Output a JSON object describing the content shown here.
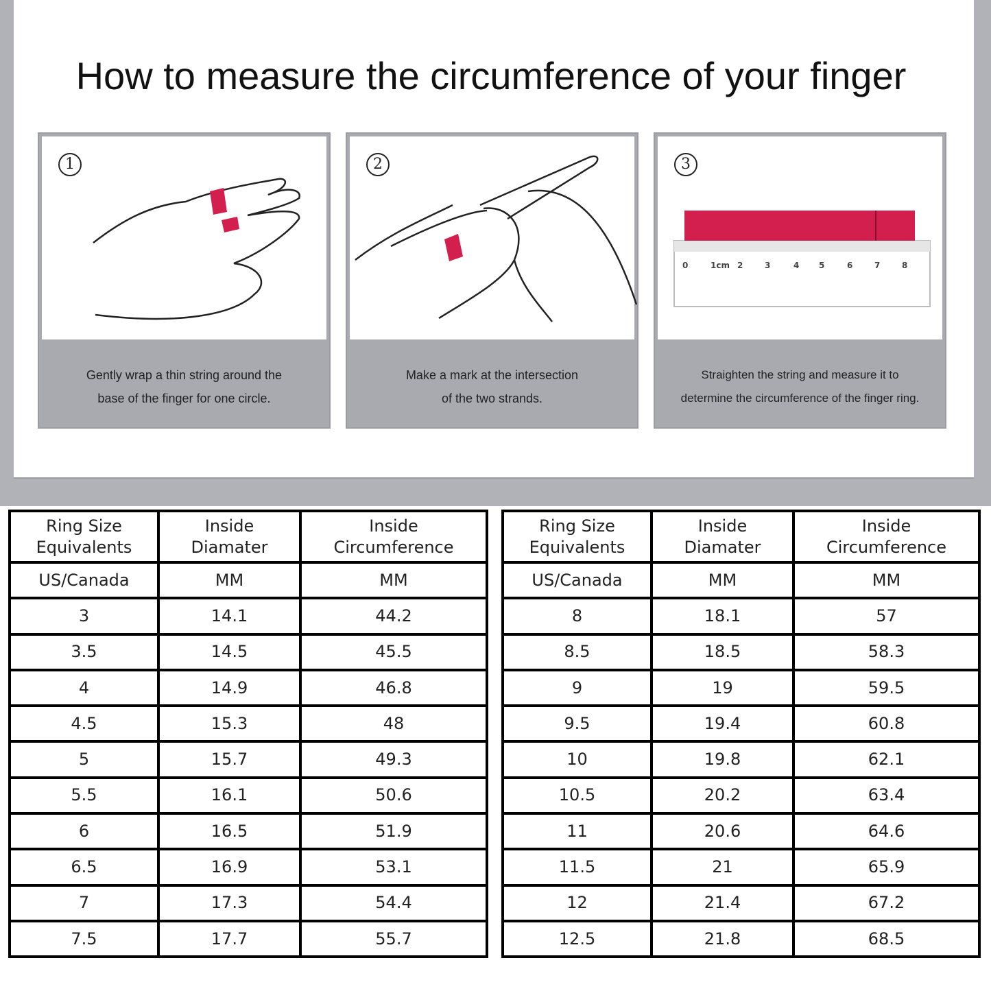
{
  "title": "How to measure the circumference of your finger",
  "steps": [
    {
      "number": "1",
      "caption_lines": [
        "Gently wrap a thin string around the",
        "base of the finger for one circle."
      ]
    },
    {
      "number": "2",
      "caption_lines": [
        "Make a mark at the intersection",
        "of the two strands."
      ]
    },
    {
      "number": "3",
      "caption_lines": [
        "Straighten the string and measure it to",
        "determine the circumference of the finger ring."
      ]
    }
  ],
  "ruler_labels": [
    "0",
    "1cm",
    "2",
    "3",
    "4",
    "5",
    "6",
    "7",
    "8"
  ],
  "colors": {
    "string": "#d21f4e",
    "caption_bg": "#a9aaaf",
    "background": "#b1b2b7"
  },
  "table": {
    "headers": [
      "Ring Size Equivalents",
      "Inside Diamater",
      "Inside Circumference"
    ],
    "units": [
      "US/Canada",
      "MM",
      "MM"
    ],
    "left_rows": [
      [
        "3",
        "14.1",
        "44.2"
      ],
      [
        "3.5",
        "14.5",
        "45.5"
      ],
      [
        "4",
        "14.9",
        "46.8"
      ],
      [
        "4.5",
        "15.3",
        "48"
      ],
      [
        "5",
        "15.7",
        "49.3"
      ],
      [
        "5.5",
        "16.1",
        "50.6"
      ],
      [
        "6",
        "16.5",
        "51.9"
      ],
      [
        "6.5",
        "16.9",
        "53.1"
      ],
      [
        "7",
        "17.3",
        "54.4"
      ],
      [
        "7.5",
        "17.7",
        "55.7"
      ]
    ],
    "right_rows": [
      [
        "8",
        "18.1",
        "57"
      ],
      [
        "8.5",
        "18.5",
        "58.3"
      ],
      [
        "9",
        "19",
        "59.5"
      ],
      [
        "9.5",
        "19.4",
        "60.8"
      ],
      [
        "10",
        "19.8",
        "62.1"
      ],
      [
        "10.5",
        "20.2",
        "63.4"
      ],
      [
        "11",
        "20.6",
        "64.6"
      ],
      [
        "11.5",
        "21",
        "65.9"
      ],
      [
        "12",
        "21.4",
        "67.2"
      ],
      [
        "12.5",
        "21.8",
        "68.5"
      ]
    ]
  }
}
